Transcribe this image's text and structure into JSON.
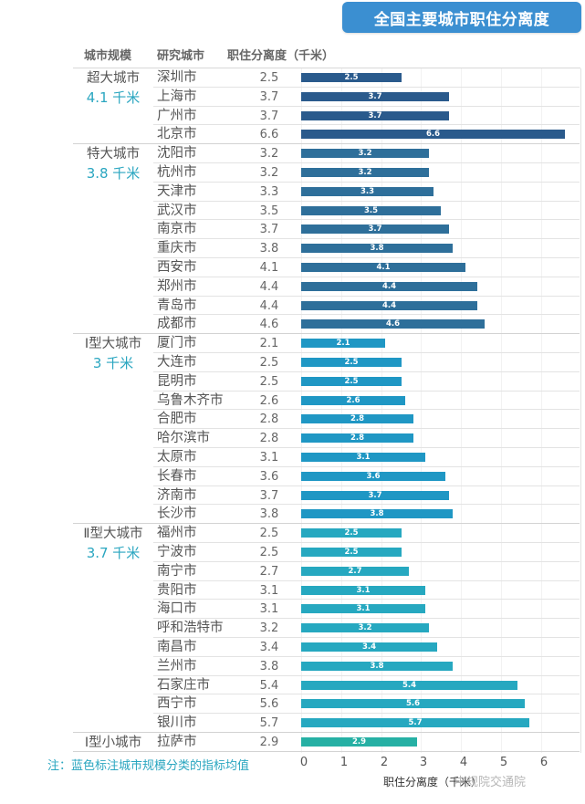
{
  "title": "全国主要城市职住分离度",
  "headers": {
    "scale": "城市规模",
    "city": "研究城市",
    "value": "职住分离度（千米）"
  },
  "note": "注：蓝色标注城市规模分类的指标均值",
  "watermark": "中规院交通院",
  "colors": {
    "title_bg": "#3b8fd1",
    "super_large": "#2a5a8c",
    "mega": "#2e6f9a",
    "large_1": "#1f97c4",
    "large_2": "#26a8c0",
    "small_1": "#26b0a4",
    "avg_text": "#2aa6c0"
  },
  "groups": [
    {
      "name": "超大城市",
      "avg": "4.1 千米",
      "start": 0,
      "count": 4,
      "color_key": "super_large"
    },
    {
      "name": "特大城市",
      "avg": "3.8 千米",
      "start": 4,
      "count": 10,
      "color_key": "mega"
    },
    {
      "name": "Ⅰ型大城市",
      "avg": "3 千米",
      "start": 14,
      "count": 10,
      "color_key": "large_1"
    },
    {
      "name": "Ⅱ型大城市",
      "avg": "3.7 千米",
      "start": 24,
      "count": 11,
      "color_key": "large_2"
    },
    {
      "name": "Ⅰ型小城市",
      "avg": "",
      "start": 35,
      "count": 1,
      "color_key": "small_1"
    }
  ],
  "rows": [
    {
      "city": "深圳市",
      "value": "2.5"
    },
    {
      "city": "上海市",
      "value": "3.7"
    },
    {
      "city": "广州市",
      "value": "3.7"
    },
    {
      "city": "北京市",
      "value": "6.6"
    },
    {
      "city": "沈阳市",
      "value": "3.2"
    },
    {
      "city": "杭州市",
      "value": "3.2"
    },
    {
      "city": "天津市",
      "value": "3.3"
    },
    {
      "city": "武汉市",
      "value": "3.5"
    },
    {
      "city": "南京市",
      "value": "3.7"
    },
    {
      "city": "重庆市",
      "value": "3.8"
    },
    {
      "city": "西安市",
      "value": "4.1"
    },
    {
      "city": "郑州市",
      "value": "4.4"
    },
    {
      "city": "青岛市",
      "value": "4.4"
    },
    {
      "city": "成都市",
      "value": "4.6"
    },
    {
      "city": "厦门市",
      "value": "2.1"
    },
    {
      "city": "大连市",
      "value": "2.5"
    },
    {
      "city": "昆明市",
      "value": "2.5"
    },
    {
      "city": "乌鲁木齐市",
      "value": "2.6"
    },
    {
      "city": "合肥市",
      "value": "2.8"
    },
    {
      "city": "哈尔滨市",
      "value": "2.8"
    },
    {
      "city": "太原市",
      "value": "3.1"
    },
    {
      "city": "长春市",
      "value": "3.6"
    },
    {
      "city": "济南市",
      "value": "3.7"
    },
    {
      "city": "长沙市",
      "value": "3.8"
    },
    {
      "city": "福州市",
      "value": "2.5"
    },
    {
      "city": "宁波市",
      "value": "2.5"
    },
    {
      "city": "南宁市",
      "value": "2.7"
    },
    {
      "city": "贵阳市",
      "value": "3.1"
    },
    {
      "city": "海口市",
      "value": "3.1"
    },
    {
      "city": "呼和浩特市",
      "value": "3.2"
    },
    {
      "city": "南昌市",
      "value": "3.4"
    },
    {
      "city": "兰州市",
      "value": "3.8"
    },
    {
      "city": "石家庄市",
      "value": "5.4"
    },
    {
      "city": "西宁市",
      "value": "5.6"
    },
    {
      "city": "银川市",
      "value": "5.7"
    },
    {
      "city": "拉萨市",
      "value": "2.9"
    }
  ],
  "axis": {
    "ticks": [
      "0",
      "1",
      "2",
      "3",
      "4",
      "5",
      "6"
    ],
    "label": "职住分离度（千米）"
  },
  "chart_data": {
    "type": "bar",
    "orientation": "horizontal",
    "title": "全国主要城市职住分离度",
    "xlabel": "职住分离度（千米）",
    "ylabel": "研究城市",
    "xlim": [
      0,
      7
    ],
    "x_ticks": [
      0,
      1,
      2,
      3,
      4,
      5,
      6
    ],
    "grid": true,
    "categories": [
      "深圳市",
      "上海市",
      "广州市",
      "北京市",
      "沈阳市",
      "杭州市",
      "天津市",
      "武汉市",
      "南京市",
      "重庆市",
      "西安市",
      "郑州市",
      "青岛市",
      "成都市",
      "厦门市",
      "大连市",
      "昆明市",
      "乌鲁木齐市",
      "合肥市",
      "哈尔滨市",
      "太原市",
      "长春市",
      "济南市",
      "长沙市",
      "福州市",
      "宁波市",
      "南宁市",
      "贵阳市",
      "海口市",
      "呼和浩特市",
      "南昌市",
      "兰州市",
      "石家庄市",
      "西宁市",
      "银川市",
      "拉萨市"
    ],
    "values": [
      2.5,
      3.7,
      3.7,
      6.6,
      3.2,
      3.2,
      3.3,
      3.5,
      3.7,
      3.8,
      4.1,
      4.4,
      4.4,
      4.6,
      2.1,
      2.5,
      2.5,
      2.6,
      2.8,
      2.8,
      3.1,
      3.6,
      3.7,
      3.8,
      2.5,
      2.5,
      2.7,
      3.1,
      3.1,
      3.2,
      3.4,
      3.8,
      5.4,
      5.6,
      5.7,
      2.9
    ],
    "series": [
      {
        "name": "超大城市",
        "mean": 4.1,
        "cities": [
          "深圳市",
          "上海市",
          "广州市",
          "北京市"
        ],
        "values": [
          2.5,
          3.7,
          3.7,
          6.6
        ]
      },
      {
        "name": "特大城市",
        "mean": 3.8,
        "cities": [
          "沈阳市",
          "杭州市",
          "天津市",
          "武汉市",
          "南京市",
          "重庆市",
          "西安市",
          "郑州市",
          "青岛市",
          "成都市"
        ],
        "values": [
          3.2,
          3.2,
          3.3,
          3.5,
          3.7,
          3.8,
          4.1,
          4.4,
          4.4,
          4.6
        ]
      },
      {
        "name": "Ⅰ型大城市",
        "mean": 3.0,
        "cities": [
          "厦门市",
          "大连市",
          "昆明市",
          "乌鲁木齐市",
          "合肥市",
          "哈尔滨市",
          "太原市",
          "长春市",
          "济南市",
          "长沙市"
        ],
        "values": [
          2.1,
          2.5,
          2.5,
          2.6,
          2.8,
          2.8,
          3.1,
          3.6,
          3.7,
          3.8
        ]
      },
      {
        "name": "Ⅱ型大城市",
        "mean": 3.7,
        "cities": [
          "福州市",
          "宁波市",
          "南宁市",
          "贵阳市",
          "海口市",
          "呼和浩特市",
          "南昌市",
          "兰州市",
          "石家庄市",
          "西宁市",
          "银川市"
        ],
        "values": [
          2.5,
          2.5,
          2.7,
          3.1,
          3.1,
          3.2,
          3.4,
          3.8,
          5.4,
          5.6,
          5.7
        ]
      },
      {
        "name": "Ⅰ型小城市",
        "cities": [
          "拉萨市"
        ],
        "values": [
          2.9
        ]
      }
    ],
    "annotation": "注：蓝色标注城市规模分类的指标均值"
  }
}
